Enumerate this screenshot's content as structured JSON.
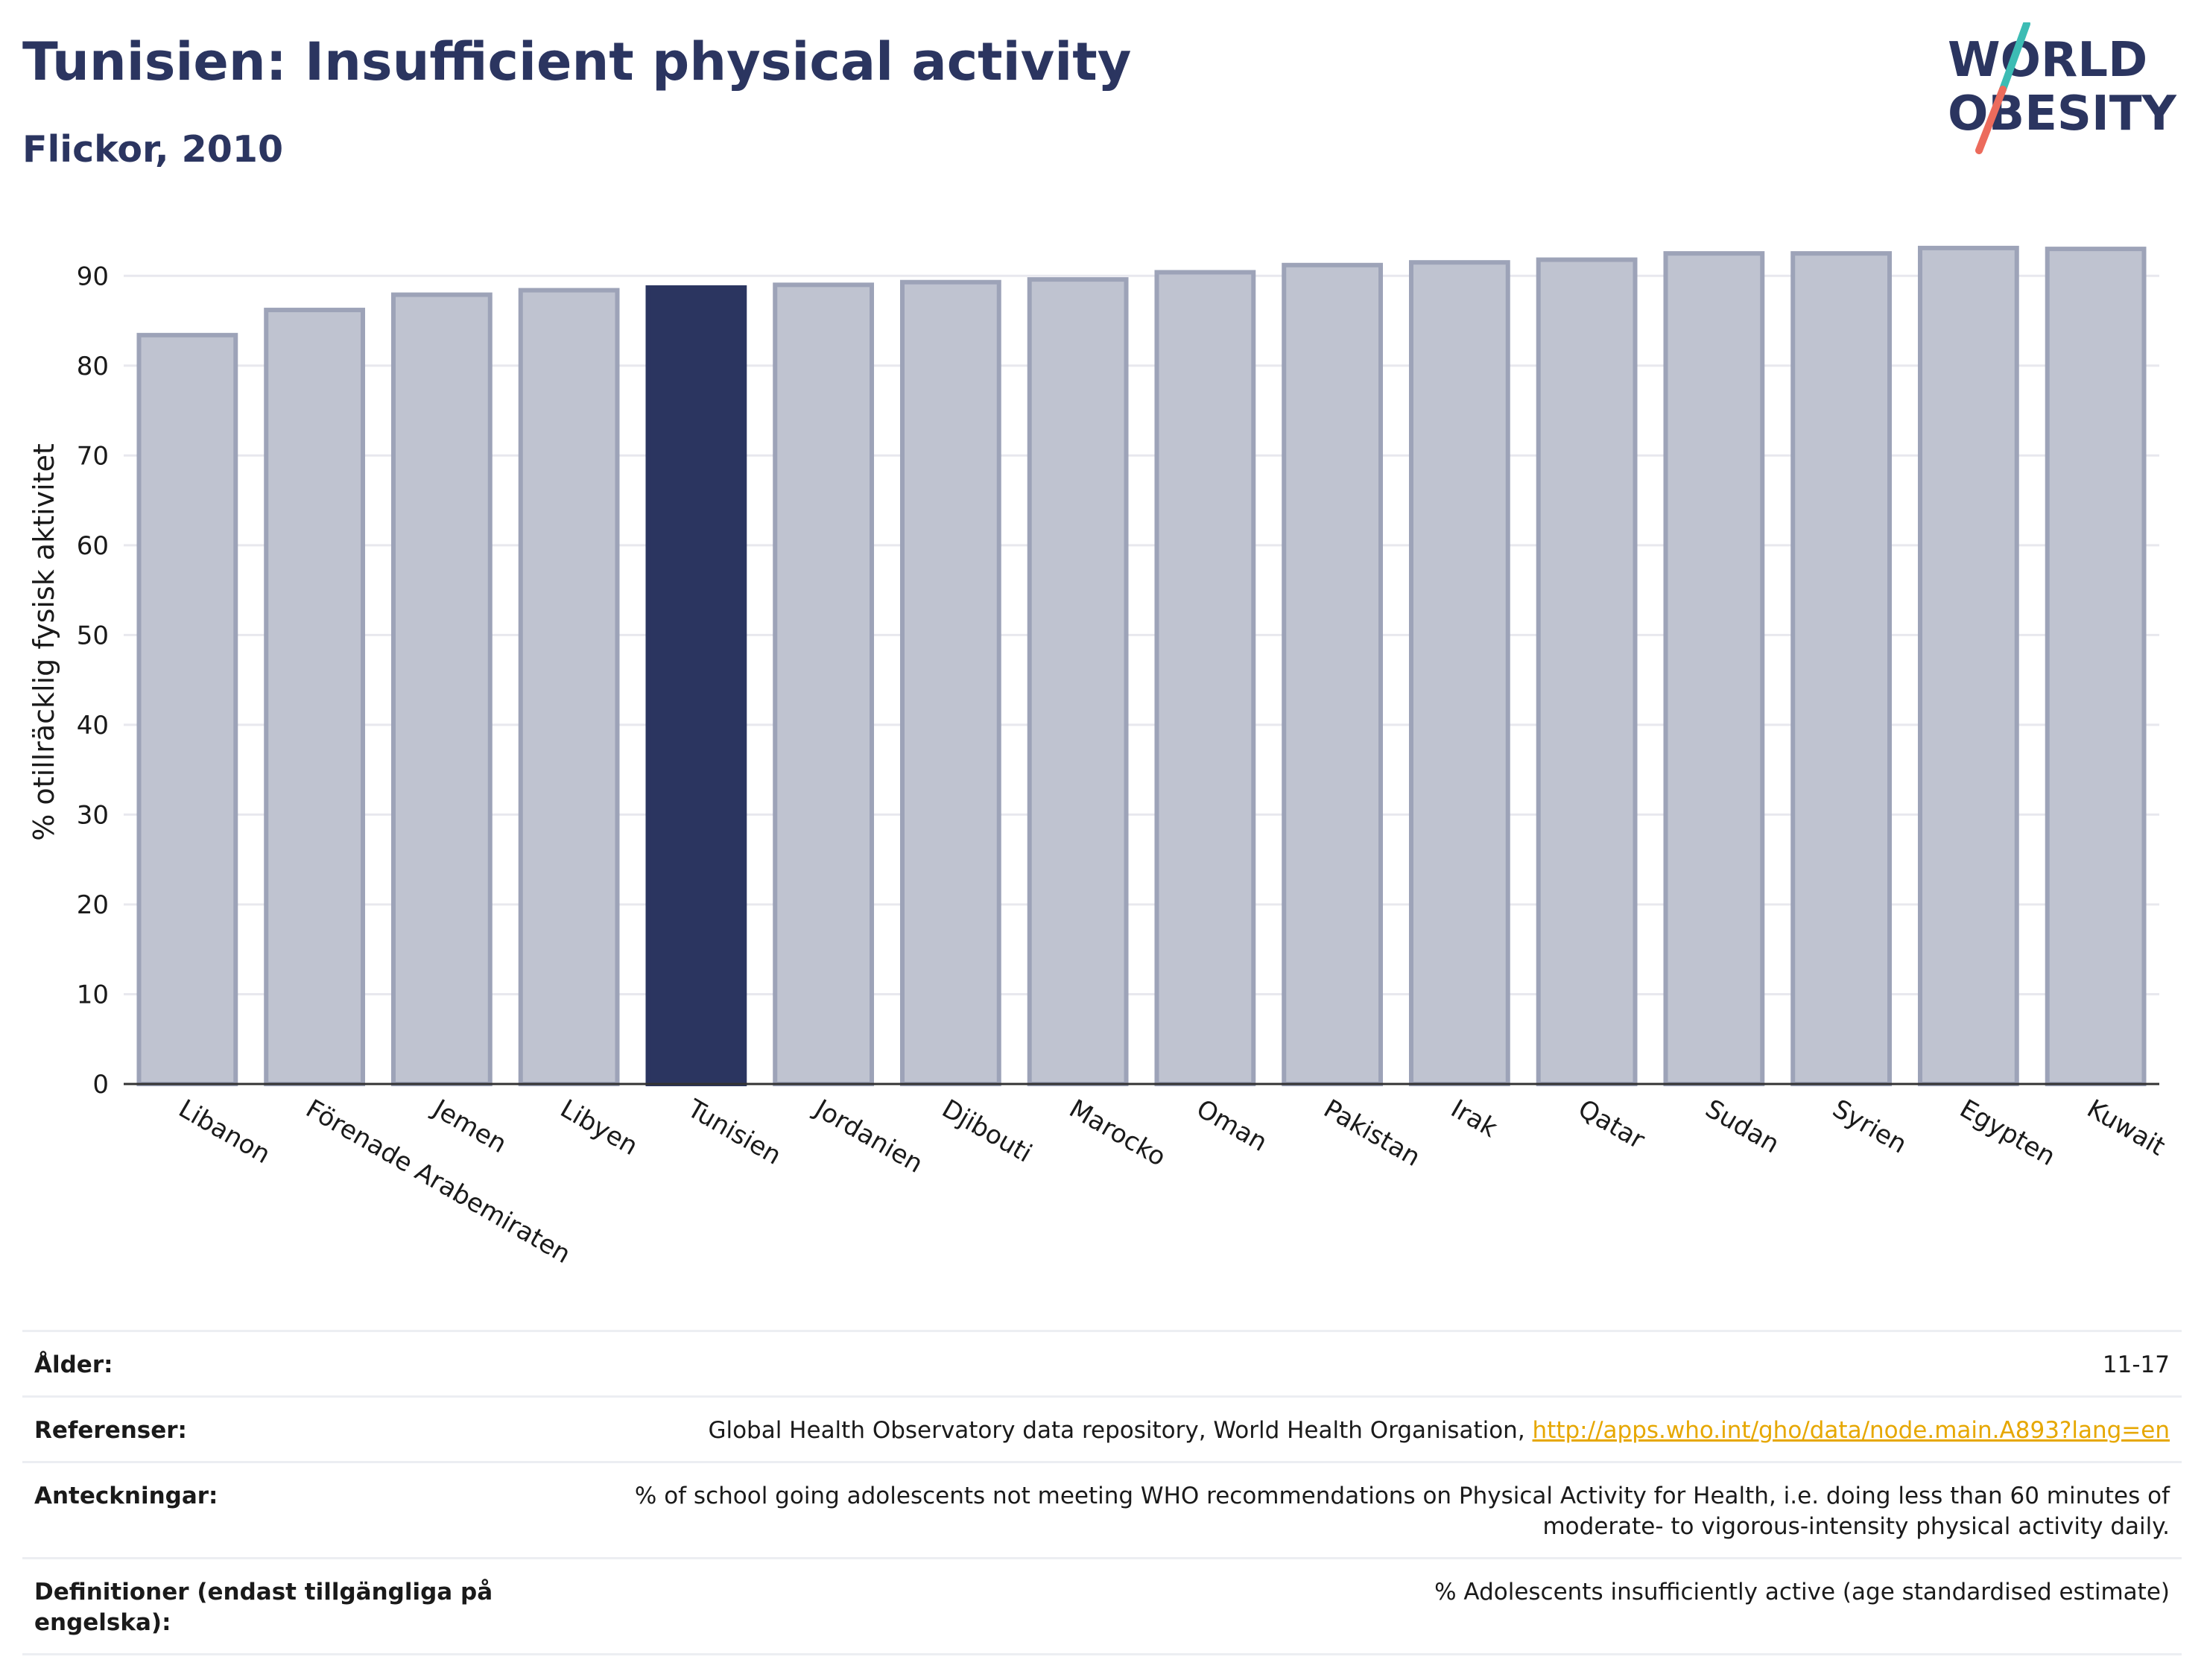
{
  "header": {
    "title": "Tunisien: Insufficient physical activity",
    "subtitle": "Flickor, 2010"
  },
  "logo": {
    "line1": "WORLD",
    "line2": "OBESITY",
    "text_color": "#2b3560",
    "slash_top_color": "#3cbcb4",
    "slash_bottom_color": "#ec6b5c"
  },
  "chart_data": {
    "type": "bar",
    "categories": [
      "Libanon",
      "Förenade Arabemiraten",
      "Jemen",
      "Libyen",
      "Tunisien",
      "Jordanien",
      "Djibouti",
      "Marocko",
      "Oman",
      "Pakistan",
      "Irak",
      "Qatar",
      "Sudan",
      "Syrien",
      "Egypten",
      "Kuwait"
    ],
    "values": [
      83.4,
      86.2,
      87.9,
      88.4,
      88.7,
      89.0,
      89.3,
      89.6,
      90.4,
      91.2,
      91.5,
      91.8,
      92.5,
      92.5,
      93.1,
      93.0
    ],
    "highlight": "Tunisien",
    "ylabel": "% otillräcklig fysisk aktivitet",
    "xlabel": "",
    "ylim": [
      0,
      95
    ],
    "yticks": [
      0,
      10,
      20,
      30,
      40,
      50,
      60,
      70,
      80,
      90
    ],
    "grid": true,
    "colors": {
      "bar": "#bfc3d0",
      "bar_border": "#9da3b8",
      "highlight": "#2b3560",
      "grid": "#e8e8ee",
      "axis": "#333333"
    }
  },
  "info": {
    "age_label": "Ålder:",
    "age_value": "11-17",
    "references_label": "Referenser:",
    "references_text": "Global Health Observatory data repository, World Health Organisation, ",
    "references_link": "http://apps.who.int/gho/data/node.main.A893?lang=en",
    "notes_label": "Anteckningar:",
    "notes_line1": "% of school going adolescents not meeting WHO recommendations on Physical Activity for Health, i.e. doing less than 60 minutes of",
    "notes_line2": "moderate- to vigorous-intensity physical activity daily.",
    "definitions_label_line1": "Definitioner (endast tillgängliga på",
    "definitions_label_line2": "engelska):",
    "definitions_value": "% Adolescents insufficiently active (age standardised estimate)"
  }
}
